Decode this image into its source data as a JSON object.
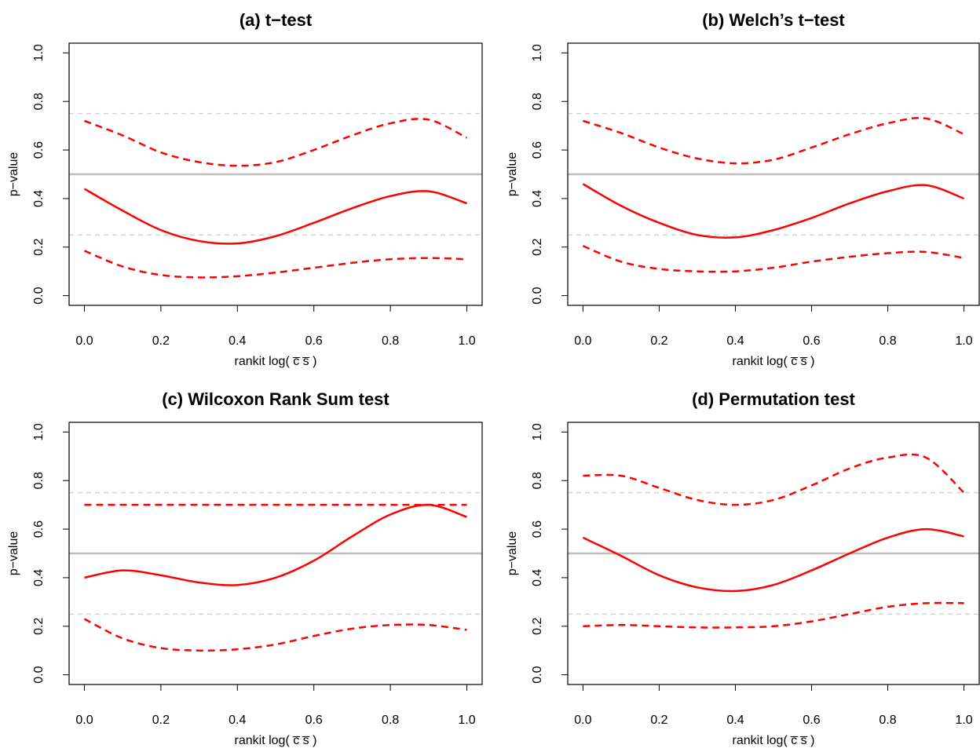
{
  "chart_data": [
    {
      "type": "line",
      "title": "(a) t−test",
      "x_label": "rankit log( c̅ s̅ )",
      "y_label": "p−value",
      "x": [
        0,
        0.1,
        0.2,
        0.3,
        0.4,
        0.5,
        0.6,
        0.7,
        0.8,
        0.9,
        1.0
      ],
      "series": [
        {
          "color": "#ff0000",
          "style": "solid",
          "values": [
            0.44,
            0.35,
            0.27,
            0.225,
            0.215,
            0.245,
            0.3,
            0.36,
            0.41,
            0.43,
            0.38
          ]
        },
        {
          "color": "#ff0000",
          "style": "dashed",
          "values": [
            0.72,
            0.66,
            0.59,
            0.55,
            0.535,
            0.55,
            0.6,
            0.66,
            0.71,
            0.725,
            0.65
          ]
        },
        {
          "color": "#ff0000",
          "style": "dashed",
          "values": [
            0.185,
            0.12,
            0.085,
            0.075,
            0.08,
            0.095,
            0.115,
            0.135,
            0.15,
            0.155,
            0.15
          ]
        }
      ],
      "reference_lines": [
        {
          "value": 0.25,
          "style": "dashed",
          "color": "#d3d3d3"
        },
        {
          "value": 0.5,
          "style": "solid",
          "color": "#bebebe"
        },
        {
          "value": 0.75,
          "style": "dashed",
          "color": "#d3d3d3"
        }
      ],
      "xlim": [
        -0.04,
        1.04
      ],
      "ylim": [
        -0.04,
        1.04
      ],
      "xticks": [
        {
          "value": 0,
          "label": "0.0"
        },
        0.2,
        0.4,
        0.6,
        0.8,
        {
          "value": 1,
          "label": "1.0"
        }
      ],
      "yticks": [
        {
          "value": 0,
          "label": "0.0"
        },
        0.2,
        0.4,
        0.6,
        0.8,
        {
          "value": 1,
          "label": "1.0"
        }
      ]
    },
    {
      "type": "line",
      "title": "(b) Welch’s t−test",
      "x_label": "rankit log( c̅ s̅ )",
      "y_label": "p−value",
      "x": [
        0,
        0.1,
        0.2,
        0.3,
        0.4,
        0.5,
        0.6,
        0.7,
        0.8,
        0.9,
        1.0
      ],
      "series": [
        {
          "color": "#ff0000",
          "style": "solid",
          "values": [
            0.46,
            0.37,
            0.3,
            0.25,
            0.24,
            0.27,
            0.32,
            0.38,
            0.43,
            0.455,
            0.4
          ]
        },
        {
          "color": "#ff0000",
          "style": "dashed",
          "values": [
            0.72,
            0.67,
            0.61,
            0.565,
            0.545,
            0.56,
            0.61,
            0.665,
            0.71,
            0.73,
            0.665
          ]
        },
        {
          "color": "#ff0000",
          "style": "dashed",
          "values": [
            0.205,
            0.14,
            0.11,
            0.1,
            0.1,
            0.115,
            0.14,
            0.16,
            0.175,
            0.18,
            0.155
          ]
        }
      ],
      "reference_lines": [
        {
          "value": 0.25,
          "style": "dashed",
          "color": "#d3d3d3"
        },
        {
          "value": 0.5,
          "style": "solid",
          "color": "#bebebe"
        },
        {
          "value": 0.75,
          "style": "dashed",
          "color": "#d3d3d3"
        }
      ],
      "xlim": [
        -0.04,
        1.04
      ],
      "ylim": [
        -0.04,
        1.04
      ],
      "xticks": [
        {
          "value": 0,
          "label": "0.0"
        },
        0.2,
        0.4,
        0.6,
        0.8,
        {
          "value": 1,
          "label": "1.0"
        }
      ],
      "yticks": [
        {
          "value": 0,
          "label": "0.0"
        },
        0.2,
        0.4,
        0.6,
        0.8,
        {
          "value": 1,
          "label": "1.0"
        }
      ]
    },
    {
      "type": "line",
      "title": "(c) Wilcoxon Rank Sum test",
      "x_label": "rankit log( c̅ s̅ )",
      "y_label": "p−value",
      "x": [
        0,
        0.1,
        0.2,
        0.3,
        0.4,
        0.5,
        0.6,
        0.7,
        0.8,
        0.9,
        1.0
      ],
      "series": [
        {
          "color": "#ff0000",
          "style": "solid",
          "values": [
            0.4,
            0.43,
            0.41,
            0.38,
            0.37,
            0.4,
            0.47,
            0.57,
            0.66,
            0.7,
            0.65
          ]
        },
        {
          "color": "#ff0000",
          "style": "dashed",
          "values": [
            0.7,
            0.7,
            0.7,
            0.7,
            0.7,
            0.7,
            0.7,
            0.7,
            0.7,
            0.7,
            0.7
          ]
        },
        {
          "color": "#ff0000",
          "style": "dashed",
          "values": [
            0.23,
            0.15,
            0.11,
            0.1,
            0.105,
            0.125,
            0.16,
            0.19,
            0.205,
            0.205,
            0.185
          ]
        }
      ],
      "reference_lines": [
        {
          "value": 0.25,
          "style": "dashed",
          "color": "#d3d3d3"
        },
        {
          "value": 0.5,
          "style": "solid",
          "color": "#bebebe"
        },
        {
          "value": 0.75,
          "style": "dashed",
          "color": "#d3d3d3"
        }
      ],
      "xlim": [
        -0.04,
        1.04
      ],
      "ylim": [
        -0.04,
        1.04
      ],
      "xticks": [
        {
          "value": 0,
          "label": "0.0"
        },
        0.2,
        0.4,
        0.6,
        0.8,
        {
          "value": 1,
          "label": "1.0"
        }
      ],
      "yticks": [
        {
          "value": 0,
          "label": "0.0"
        },
        0.2,
        0.4,
        0.6,
        0.8,
        {
          "value": 1,
          "label": "1.0"
        }
      ]
    },
    {
      "type": "line",
      "title": "(d) Permutation test",
      "x_label": "rankit log( c̅ s̅ )",
      "y_label": "p−value",
      "x": [
        0,
        0.1,
        0.2,
        0.3,
        0.4,
        0.5,
        0.6,
        0.7,
        0.8,
        0.9,
        1.0
      ],
      "series": [
        {
          "color": "#ff0000",
          "style": "solid",
          "values": [
            0.565,
            0.49,
            0.41,
            0.36,
            0.345,
            0.37,
            0.43,
            0.5,
            0.565,
            0.6,
            0.57
          ]
        },
        {
          "color": "#ff0000",
          "style": "dashed",
          "values": [
            0.82,
            0.82,
            0.77,
            0.72,
            0.7,
            0.72,
            0.78,
            0.85,
            0.895,
            0.895,
            0.75
          ]
        },
        {
          "color": "#ff0000",
          "style": "dashed",
          "values": [
            0.2,
            0.205,
            0.2,
            0.195,
            0.195,
            0.2,
            0.22,
            0.25,
            0.28,
            0.295,
            0.295
          ]
        }
      ],
      "reference_lines": [
        {
          "value": 0.25,
          "style": "dashed",
          "color": "#d3d3d3"
        },
        {
          "value": 0.5,
          "style": "solid",
          "color": "#bebebe"
        },
        {
          "value": 0.75,
          "style": "dashed",
          "color": "#d3d3d3"
        }
      ],
      "xlim": [
        -0.04,
        1.04
      ],
      "ylim": [
        -0.04,
        1.04
      ],
      "xticks": [
        {
          "value": 0,
          "label": "0.0"
        },
        0.2,
        0.4,
        0.6,
        0.8,
        {
          "value": 1,
          "label": "1.0"
        }
      ],
      "yticks": [
        {
          "value": 0,
          "label": "0.0"
        },
        0.2,
        0.4,
        0.6,
        0.8,
        {
          "value": 1,
          "label": "1.0"
        }
      ]
    }
  ]
}
